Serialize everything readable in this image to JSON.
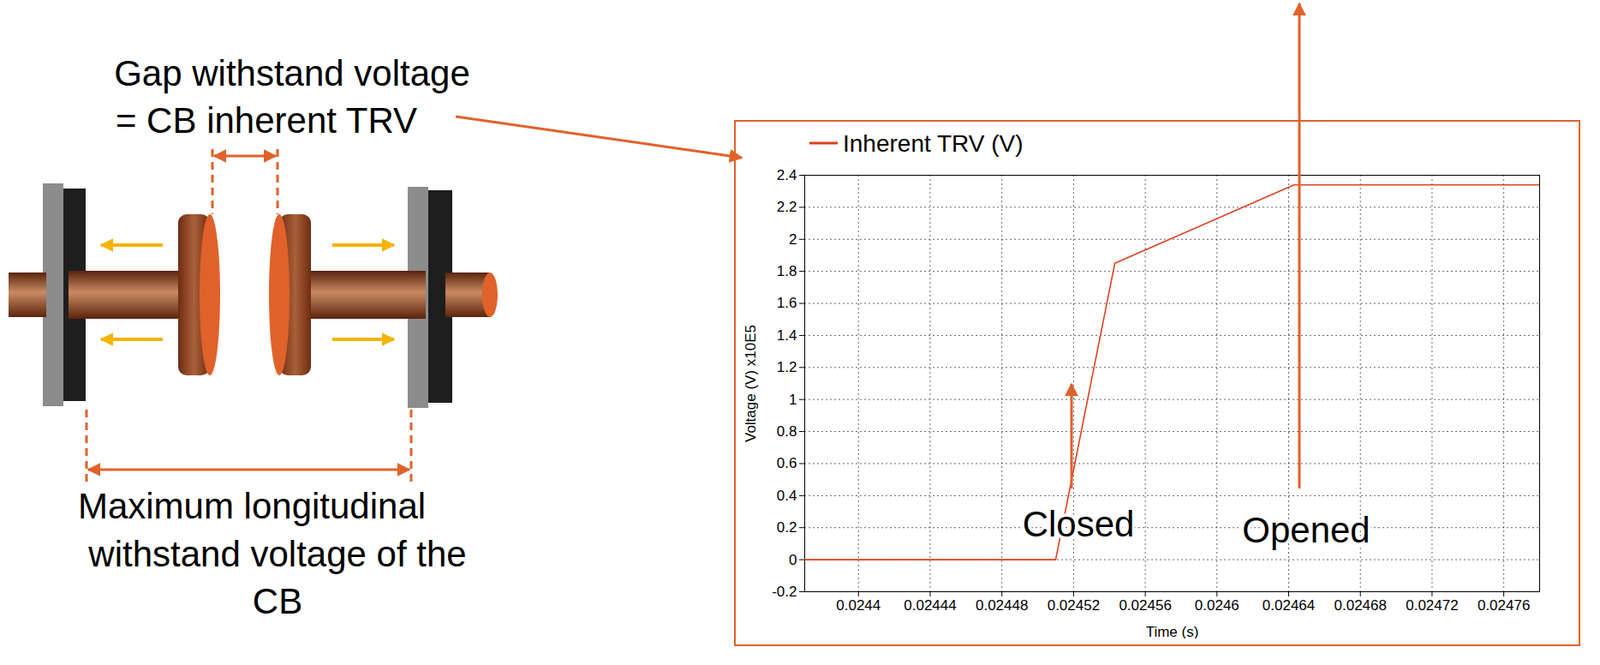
{
  "diagram": {
    "gap_label": [
      "Gap withstand voltage",
      "= CB inherent TRV"
    ],
    "longitudinal_label": [
      "Maximum longitudinal",
      "withstand voltage of the",
      "CB"
    ]
  },
  "chart_data": {
    "type": "line",
    "x_label": "Time (s)",
    "y_label": "Voltage (V) x10E5",
    "annotations": [
      "Closed",
      "Opened"
    ],
    "x": [
      0.02437,
      0.02451,
      0.024543,
      0.024643,
      0.02478
    ],
    "series": [
      {
        "name": "Inherent TRV (V)",
        "color": "#e2401f",
        "values": [
          0,
          0,
          1.85,
          2.34,
          2.34
        ]
      }
    ],
    "xlim": [
      0.02437,
      0.02478
    ],
    "xticks": [
      0.0244,
      0.02444,
      0.02448,
      0.02452,
      0.02456,
      0.0246,
      0.02464,
      0.02468,
      0.02472,
      0.02476
    ],
    "ylim": [
      -0.2,
      2.4
    ],
    "yticks": [
      -0.2,
      0,
      0.2,
      0.4,
      0.6,
      0.8,
      1,
      1.2,
      1.4,
      1.6,
      1.8,
      2,
      2.2,
      2.4
    ],
    "grid": true,
    "legend": "top-left"
  }
}
